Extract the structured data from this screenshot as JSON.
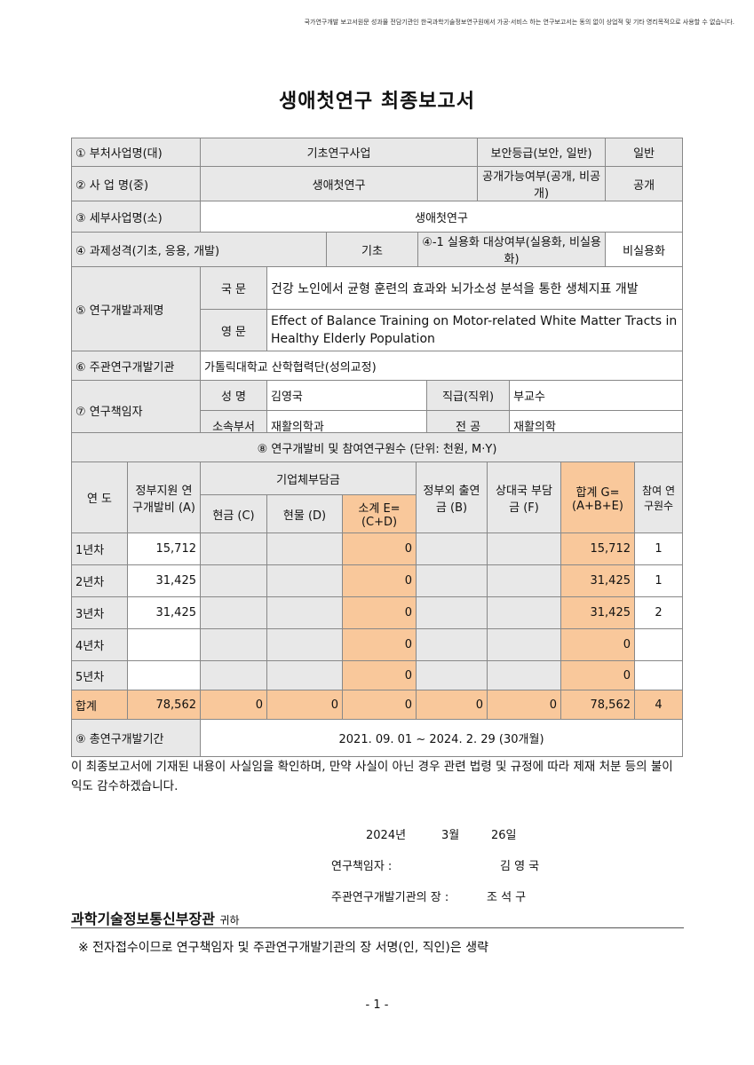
{
  "notice": "국가연구개발 보고서원문 성과물 전담기관인 한국과학기술정보연구원에서 가공·서비스 하는 연구보고서는 동의 없이 상업적 및 기타 영리목적으로 사용할 수 없습니다.",
  "title": "생애첫연구 최종보고서",
  "info": {
    "r1": [
      "① 부처사업명(대)",
      "기초연구사업",
      "보안등급(보안, 일반)",
      "일반"
    ],
    "r2": [
      "② 사  업  명(중)",
      "생애첫연구",
      "공개가능여부(공개, 비공개)",
      "공개"
    ],
    "r3": [
      "③ 세부사업명(소)",
      "생애첫연구"
    ],
    "r4": [
      "④ 과제성격(기초, 응용, 개발)",
      "기초",
      "④-1 실용화 대상여부(실용화, 비실용화)",
      "비실용화"
    ],
    "r5": [
      "⑤ 연구개발과제명",
      "국 문",
      "건강 노인에서 균형 훈련의 효과와 뇌가소성 분석을 통한 생체지표 개발",
      "영 문",
      "Effect of Balance Training on Motor-related White Matter Tracts in Healthy Elderly Population"
    ],
    "r6": [
      "⑥ 주관연구개발기관",
      "가톨릭대학교 산학협력단(성의교정)"
    ],
    "r7": [
      "⑦ 연구책임자",
      "성 명",
      "김영국",
      "직급(직위)",
      "부교수",
      "소속부서",
      "재활의학과",
      "전 공",
      "재활의학"
    ]
  },
  "budget": {
    "title": "⑧ 연구개발비 및 참여연구원수 (단위: 천원, M·Y)",
    "h": [
      "연 도",
      "정부지원 연구개발비 (A)",
      "기업체부담금",
      "현금 (C)",
      "현물 (D)",
      "소계 E=(C+D)",
      "정부외 출연금 (B)",
      "상대국 부담금 (F)",
      "합계 G=(A+B+E)",
      "참여 연구원수"
    ],
    "rows": [
      [
        "1년차",
        "15,712",
        "",
        "",
        "0",
        "",
        "",
        "15,712",
        "1"
      ],
      [
        "2년차",
        "31,425",
        "",
        "",
        "0",
        "",
        "",
        "31,425",
        "1"
      ],
      [
        "3년차",
        "31,425",
        "",
        "",
        "0",
        "",
        "",
        "31,425",
        "2"
      ],
      [
        "4년차",
        "",
        "",
        "",
        "0",
        "",
        "",
        "0",
        ""
      ],
      [
        "5년차",
        "",
        "",
        "",
        "0",
        "",
        "",
        "0",
        ""
      ],
      [
        "합계",
        "78,562",
        "0",
        "0",
        "0",
        "0",
        "0",
        "78,562",
        "4"
      ]
    ],
    "period_label": "⑨ 총연구개발기간",
    "period": "2021. 09. 01 ~ 2024. 2. 29 (30개월)"
  },
  "statement": "이 최종보고서에 기재된 내용이 사실임을 확인하며, 만약 사실이 아닌 경우 관련 법령 및 규정에 따라 제재 처분 등의 불이익도 감수하겠습니다.",
  "date": [
    "2024년",
    "3월",
    "26일"
  ],
  "sign": {
    "pi_label": "연구책임자 :",
    "pi": "김 영 국",
    "head_label": "주관연구개발기관의 장 :",
    "head": "조 석 구"
  },
  "recipient": "과학기술정보통신부장관",
  "recipient_suffix": "귀하",
  "note": "※ 전자접수이므로 연구책임자 및 주관연구개발기관의 장 서명(인, 직인)은 생략",
  "page": "- 1 -"
}
